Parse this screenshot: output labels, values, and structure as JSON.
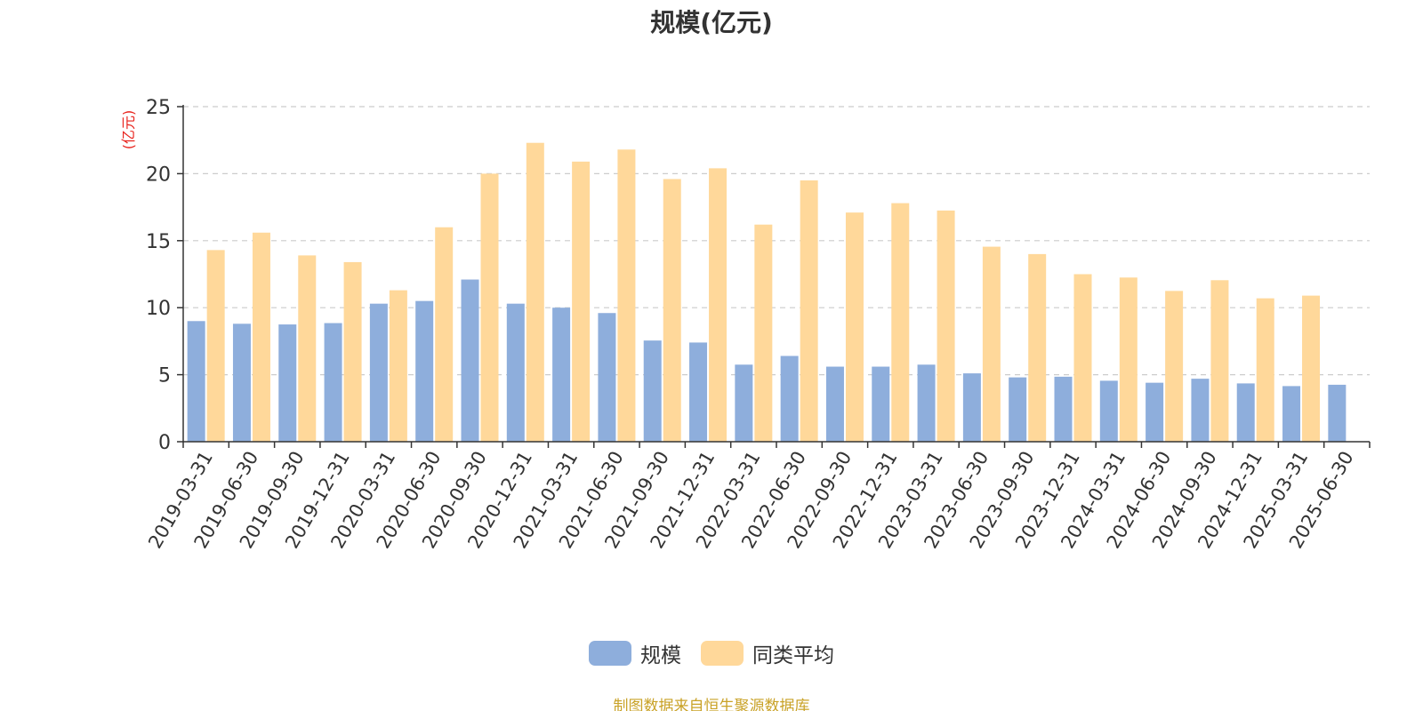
{
  "chart_data": {
    "type": "bar",
    "title": "规模(亿元)",
    "ylabel": "(亿元)",
    "xlabel": "",
    "ylim": [
      0,
      25
    ],
    "yticks": [
      0,
      5,
      10,
      15,
      20,
      25
    ],
    "grid": true,
    "legend_position": "bottom-center",
    "categories": [
      "2019-03-31",
      "2019-06-30",
      "2019-09-30",
      "2019-12-31",
      "2020-03-31",
      "2020-06-30",
      "2020-09-30",
      "2020-12-31",
      "2021-03-31",
      "2021-06-30",
      "2021-09-30",
      "2021-12-31",
      "2022-03-31",
      "2022-06-30",
      "2022-09-30",
      "2022-12-31",
      "2023-03-31",
      "2023-06-30",
      "2023-09-30",
      "2023-12-31",
      "2024-03-31",
      "2024-06-30",
      "2024-09-30",
      "2024-12-31",
      "2025-03-31",
      "2025-06-30"
    ],
    "series": [
      {
        "name": "规模",
        "color": "#8eaedc",
        "values": [
          9.0,
          8.8,
          8.75,
          8.85,
          10.3,
          10.5,
          12.1,
          10.3,
          10.0,
          9.6,
          7.55,
          7.4,
          5.75,
          6.4,
          5.6,
          5.6,
          5.75,
          5.1,
          4.8,
          4.85,
          4.55,
          4.4,
          4.7,
          4.35,
          4.15,
          4.25
        ]
      },
      {
        "name": "同类平均",
        "color": "#ffd89a",
        "values": [
          14.3,
          15.6,
          13.9,
          13.4,
          11.3,
          16.0,
          20.0,
          22.3,
          20.9,
          21.8,
          19.6,
          20.4,
          16.2,
          19.5,
          17.1,
          17.8,
          17.25,
          14.55,
          14.0,
          12.5,
          12.25,
          11.25,
          12.05,
          10.7,
          10.9,
          null
        ]
      }
    ]
  },
  "footer": {
    "source": "制图数据来自恒生聚源数据库"
  },
  "colors": {
    "axis": "#333333",
    "grid": "#cccccc",
    "ylabel": "#e8231d",
    "source": "#c9a227"
  }
}
